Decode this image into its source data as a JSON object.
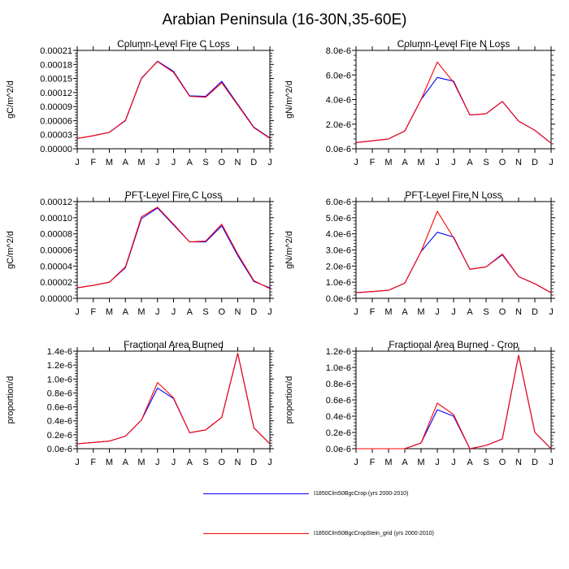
{
  "figure_title": "Arabian Peninsula (16-30N,35-60E)",
  "series_styles": [
    {
      "name": "I1850Clm50BgcCrop (yrs 2000-2010)",
      "color": "#0000ff"
    },
    {
      "name": "I1850Clm50BgcCropStein_grid (yrs 2000-2010)",
      "color": "#ff0000"
    }
  ],
  "chart_data": [
    {
      "type": "line",
      "title": "Column-Level Fire C Loss",
      "ylabel": "gC/m^2/d",
      "xlabel": "",
      "categories": [
        "J",
        "F",
        "M",
        "A",
        "M",
        "J",
        "J",
        "A",
        "S",
        "O",
        "N",
        "D",
        "J"
      ],
      "ylim": [
        0,
        0.00021
      ],
      "yticks": [
        "0.00000",
        "0.00003",
        "0.00006",
        "0.00009",
        "0.00012",
        "0.00015",
        "0.00018",
        "0.00021"
      ],
      "series": [
        {
          "name": "I1850Clm50BgcCrop (yrs 2000-2010)",
          "values": [
            2.2e-05,
            2.8e-05,
            3.5e-05,
            6e-05,
            0.00015,
            0.000187,
            0.000165,
            0.000113,
            0.000112,
            0.000144,
            9.5e-05,
            4.6e-05,
            2.3e-05
          ]
        },
        {
          "name": "I1850Clm50BgcCropStein_grid (yrs 2000-2010)",
          "values": [
            2.2e-05,
            2.8e-05,
            3.5e-05,
            6.1e-05,
            0.000151,
            0.000186,
            0.000163,
            0.000112,
            0.00011,
            0.000141,
            9.3e-05,
            4.5e-05,
            2.2e-05
          ]
        }
      ]
    },
    {
      "type": "line",
      "title": "Column-Level Fire N Loss",
      "ylabel": "gN/m^2/d",
      "xlabel": "",
      "categories": [
        "J",
        "F",
        "M",
        "A",
        "M",
        "J",
        "J",
        "A",
        "S",
        "O",
        "N",
        "D",
        "J"
      ],
      "ylim": [
        0,
        8e-06
      ],
      "yticks": [
        "0.0e-6",
        "2.0e-6",
        "4.0e-6",
        "6.0e-6",
        "8.0e-6"
      ],
      "series": [
        {
          "name": "I1850Clm50BgcCrop (yrs 2000-2010)",
          "values": [
            5e-07,
            6.5e-07,
            8e-07,
            1.45e-06,
            4e-06,
            5.8e-06,
            5.5e-06,
            2.75e-06,
            2.85e-06,
            3.85e-06,
            2.25e-06,
            1.5e-06,
            4.5e-07
          ]
        },
        {
          "name": "I1850Clm50BgcCropStein_grid (yrs 2000-2010)",
          "values": [
            5e-07,
            6.5e-07,
            8e-07,
            1.45e-06,
            4e-06,
            7.05e-06,
            5.4e-06,
            2.75e-06,
            2.85e-06,
            3.85e-06,
            2.25e-06,
            1.5e-06,
            4.5e-07
          ]
        }
      ]
    },
    {
      "type": "line",
      "title": "PFT-Level Fire C Loss",
      "ylabel": "gC/m^2/d",
      "xlabel": "",
      "categories": [
        "J",
        "F",
        "M",
        "A",
        "M",
        "J",
        "J",
        "A",
        "S",
        "O",
        "N",
        "D",
        "J"
      ],
      "ylim": [
        0,
        0.00012
      ],
      "yticks": [
        "0.00000",
        "0.00002",
        "0.00004",
        "0.00006",
        "0.00008",
        "0.00010",
        "0.00012"
      ],
      "series": [
        {
          "name": "I1850Clm50BgcCrop (yrs 2000-2010)",
          "values": [
            1.3e-05,
            1.6e-05,
            2e-05,
            3.8e-05,
            9.9e-05,
            0.000112,
            9.1e-05,
            7e-05,
            7e-05,
            9e-05,
            5.3e-05,
            2.1e-05,
            1.3e-05
          ]
        },
        {
          "name": "I1850Clm50BgcCropStein_grid (yrs 2000-2010)",
          "values": [
            1.3e-05,
            1.6e-05,
            2e-05,
            3.9e-05,
            0.000101,
            0.000113,
            9.2e-05,
            7e-05,
            7.1e-05,
            9.2e-05,
            5.5e-05,
            2.2e-05,
            1.2e-05
          ]
        }
      ]
    },
    {
      "type": "line",
      "title": "PFT-Level Fire N Loss",
      "ylabel": "gN/m^2/d",
      "xlabel": "",
      "categories": [
        "J",
        "F",
        "M",
        "A",
        "M",
        "J",
        "J",
        "A",
        "S",
        "O",
        "N",
        "D",
        "J"
      ],
      "ylim": [
        0,
        6e-06
      ],
      "yticks": [
        "0.0e-6",
        "1.0e-6",
        "2.0e-6",
        "3.0e-6",
        "4.0e-6",
        "5.0e-6",
        "6.0e-6"
      ],
      "series": [
        {
          "name": "I1850Clm50BgcCrop (yrs 2000-2010)",
          "values": [
            3.5e-07,
            4.2e-07,
            5e-07,
            9.5e-07,
            2.9e-06,
            4.1e-06,
            3.8e-06,
            1.8e-06,
            1.95e-06,
            2.7e-06,
            1.35e-06,
            9e-07,
            3.5e-07
          ]
        },
        {
          "name": "I1850Clm50BgcCropStein_grid (yrs 2000-2010)",
          "values": [
            3.5e-07,
            4.2e-07,
            5e-07,
            9.5e-07,
            2.9e-06,
            5.4e-06,
            3.75e-06,
            1.8e-06,
            1.95e-06,
            2.75e-06,
            1.35e-06,
            9e-07,
            3.5e-07
          ]
        }
      ]
    },
    {
      "type": "line",
      "title": "Fractional Area Burned",
      "ylabel": "proportion/d",
      "xlabel": "",
      "categories": [
        "J",
        "F",
        "M",
        "A",
        "M",
        "J",
        "J",
        "A",
        "S",
        "O",
        "N",
        "D",
        "J"
      ],
      "ylim": [
        0,
        1.4e-06
      ],
      "yticks": [
        "0.0e-6",
        "0.2e-6",
        "0.4e-6",
        "0.6e-6",
        "0.8e-6",
        "1.0e-6",
        "1.2e-6",
        "1.4e-6"
      ],
      "series": [
        {
          "name": "I1850Clm50BgcCrop (yrs 2000-2010)",
          "values": [
            7e-08,
            9e-08,
            1.1e-07,
            1.8e-07,
            4.1e-07,
            8.7e-07,
            7.2e-07,
            2.3e-07,
            2.7e-07,
            4.5e-07,
            1.37e-06,
            3e-07,
            7e-08
          ]
        },
        {
          "name": "I1850Clm50BgcCropStein_grid (yrs 2000-2010)",
          "values": [
            7e-08,
            9e-08,
            1.1e-07,
            1.8e-07,
            4.1e-07,
            9.5e-07,
            7.3e-07,
            2.3e-07,
            2.7e-07,
            4.5e-07,
            1.37e-06,
            3e-07,
            7e-08
          ]
        }
      ]
    },
    {
      "type": "line",
      "title": "Fractional Area Burned - Crop",
      "ylabel": "proportion/d",
      "xlabel": "",
      "categories": [
        "J",
        "F",
        "M",
        "A",
        "M",
        "J",
        "J",
        "A",
        "S",
        "O",
        "N",
        "D",
        "J"
      ],
      "ylim": [
        0,
        1.2e-06
      ],
      "yticks": [
        "0.0e-6",
        "0.2e-6",
        "0.4e-6",
        "0.6e-6",
        "0.8e-6",
        "1.0e-6",
        "1.2e-6"
      ],
      "series": [
        {
          "name": "I1850Clm50BgcCrop (yrs 2000-2010)",
          "values": [
            0.0,
            0.0,
            0.0,
            0.0,
            7e-08,
            4.8e-07,
            4e-07,
            0.0,
            4e-08,
            1.2e-07,
            1.15e-06,
            2e-07,
            0.0
          ]
        },
        {
          "name": "I1850Clm50BgcCropStein_grid (yrs 2000-2010)",
          "values": [
            0.0,
            0.0,
            0.0,
            0.0,
            7e-08,
            5.6e-07,
            4.2e-07,
            0.0,
            4e-08,
            1.2e-07,
            1.15e-06,
            2e-07,
            0.0
          ]
        }
      ]
    }
  ],
  "legend": [
    {
      "label": "I1850Clm50BgcCrop (yrs 2000-2010)",
      "color": "#0000ff"
    },
    {
      "label": "I1850Clm50BgcCropStein_grid (yrs 2000-2010)",
      "color": "#ff0000"
    }
  ]
}
